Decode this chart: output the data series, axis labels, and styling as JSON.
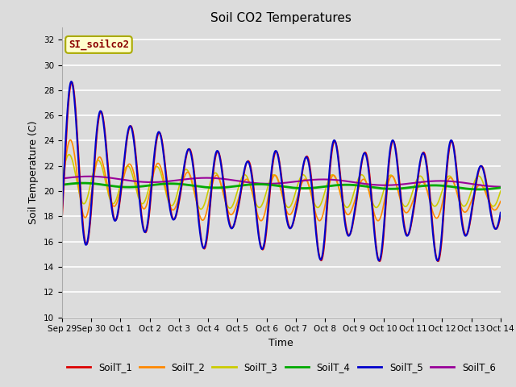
{
  "title": "Soil CO2 Temperatures",
  "xlabel": "Time",
  "ylabel": "Soil Temperature (C)",
  "ylim": [
    10,
    33
  ],
  "yticks": [
    10,
    12,
    14,
    16,
    18,
    20,
    22,
    24,
    26,
    28,
    30,
    32
  ],
  "background_color": "#dcdcdc",
  "annotation_text": "SI_soilco2",
  "annotation_color": "#8B0000",
  "annotation_bg": "#ffffcc",
  "series_colors": {
    "SoilT_1": "#dd0000",
    "SoilT_2": "#ff8800",
    "SoilT_3": "#cccc00",
    "SoilT_4": "#00aa00",
    "SoilT_5": "#0000cc",
    "SoilT_6": "#990099"
  },
  "x_tick_labels": [
    "Sep 29",
    "Sep 30",
    "Oct 1",
    "Oct 2",
    "Oct 3",
    "Oct 4",
    "Oct 5",
    "Oct 6",
    "Oct 7",
    "Oct 8",
    "Oct 9",
    "Oct 10",
    "Oct 11",
    "Oct 12",
    "Oct 13",
    "Oct 14"
  ],
  "x_tick_positions": [
    0,
    1,
    2,
    3,
    4,
    5,
    6,
    7,
    8,
    9,
    10,
    11,
    12,
    13,
    14,
    15
  ]
}
